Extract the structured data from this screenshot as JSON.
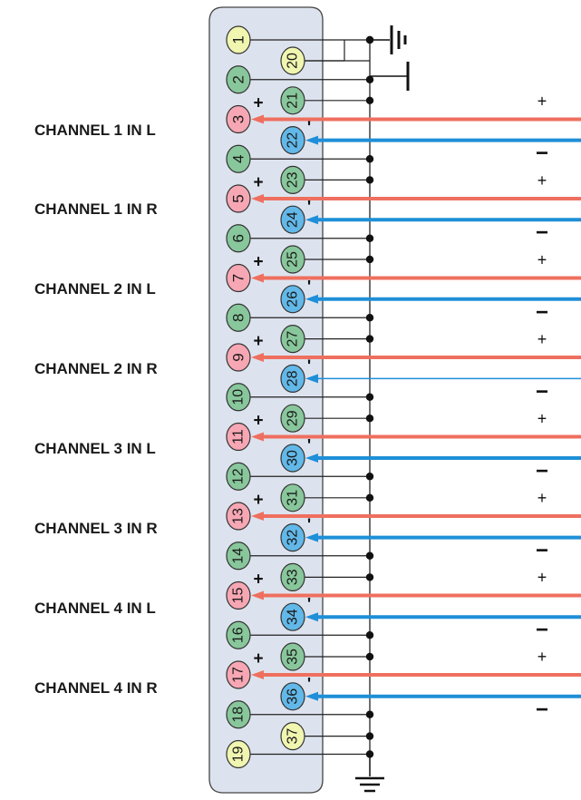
{
  "diagram": {
    "channel_labels": [
      "CHANNEL 1 IN L",
      "CHANNEL 1 IN R",
      "CHANNEL 2 IN L",
      "CHANNEL 2 IN R",
      "CHANNEL 3 IN L",
      "CHANNEL 3 IN R",
      "CHANNEL 4 IN L",
      "CHANNEL 4 IN R"
    ],
    "plus_sign": "+",
    "minus_sign": "−",
    "tick_mark": "'",
    "pins_left": [
      "1",
      "2",
      "3",
      "4",
      "5",
      "6",
      "7",
      "8",
      "9",
      "10",
      "11",
      "12",
      "13",
      "14",
      "15",
      "16",
      "17",
      "18",
      "19"
    ],
    "pins_right": [
      "20",
      "21",
      "22",
      "23",
      "24",
      "25",
      "26",
      "27",
      "28",
      "29",
      "30",
      "31",
      "32",
      "33",
      "34",
      "35",
      "36",
      "37"
    ],
    "pin_roles": {
      "ground_pins": [
        "1",
        "20",
        "19",
        "37"
      ],
      "shield_pins": [
        "2",
        "21",
        "4",
        "23",
        "6",
        "25",
        "8",
        "27",
        "10",
        "29",
        "12",
        "31",
        "14",
        "33",
        "16",
        "35",
        "18"
      ],
      "hot_pins": [
        "3",
        "5",
        "7",
        "9",
        "11",
        "13",
        "15",
        "17"
      ],
      "cold_pins": [
        "22",
        "24",
        "26",
        "28",
        "30",
        "32",
        "34",
        "36"
      ]
    },
    "colors": {
      "ground_pin": "#f0f5b0",
      "shield_pin": "#88c79b",
      "hot_pin": "#f7a7b4",
      "cold_pin": "#62b8e8",
      "hot_wire": "#ef6f5f",
      "cold_wire": "#1e8fd8",
      "connector_shell": "#dde3ee"
    },
    "symbols": [
      "ground-symbol",
      "chassis-symbol"
    ]
  }
}
